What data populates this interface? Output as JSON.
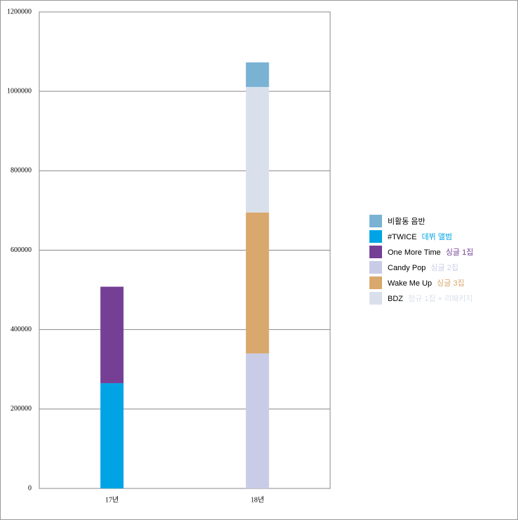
{
  "chart_data": {
    "type": "bar",
    "stacked": true,
    "categories": [
      "17년",
      "18년"
    ],
    "series": [
      {
        "name": "비활동 음반",
        "color": "#7ab2d4",
        "values": [
          null,
          62000
        ]
      },
      {
        "name": "#TWICE",
        "note": "데뷔 앨범",
        "color": "#00a4e4",
        "values": [
          265000,
          null
        ]
      },
      {
        "name": "One More Time",
        "note": "싱글 1집",
        "color": "#753f96",
        "values": [
          243000,
          null
        ]
      },
      {
        "name": "Candy Pop",
        "note": "싱글 2집",
        "color": "#c9cce6",
        "values": [
          null,
          340000
        ]
      },
      {
        "name": "Wake Me Up",
        "note": "싱글 3집",
        "color": "#d8a86c",
        "values": [
          null,
          355000
        ]
      },
      {
        "name": "BDZ",
        "note": "정규 1집 + 리패키지",
        "color": "#d9e0ec",
        "values": [
          null,
          316000
        ]
      }
    ],
    "stack_order": [
      1,
      2,
      3,
      4,
      5,
      0
    ],
    "ylim": [
      0,
      1200000
    ],
    "yticks": [
      0,
      200000,
      400000,
      600000,
      800000,
      1000000,
      1200000
    ],
    "grid": true,
    "legend": "right"
  }
}
